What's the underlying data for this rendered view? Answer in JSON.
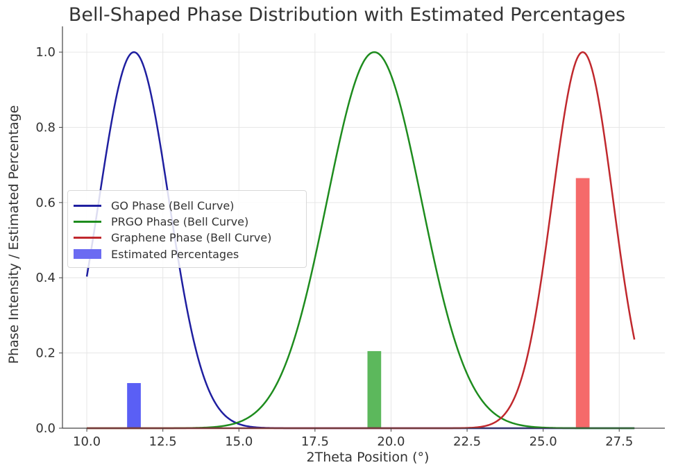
{
  "chart_data": {
    "type": "line",
    "title": "Bell-Shaped Phase Distribution with Estimated Percentages",
    "xlabel": "2Theta Position (°)",
    "ylabel": "Phase Intensity / Estimated Percentage",
    "xlim": [
      9.2,
      29.0
    ],
    "ylim": [
      0.0,
      1.05
    ],
    "xticks": [
      10.0,
      12.5,
      15.0,
      17.5,
      20.0,
      22.5,
      25.0,
      27.5
    ],
    "xtick_labels": [
      "10.0",
      "12.5",
      "15.0",
      "17.5",
      "20.0",
      "22.5",
      "25.0",
      "27.5"
    ],
    "yticks": [
      0.0,
      0.2,
      0.4,
      0.6,
      0.8,
      1.0
    ],
    "ytick_labels": [
      "0.0",
      "0.2",
      "0.4",
      "0.6",
      "0.8",
      "1.0"
    ],
    "grid": true,
    "legend_position": "center-left",
    "series": [
      {
        "name": "GO Phase (Bell Curve)",
        "kind": "gaussian",
        "center": 11.55,
        "sigma": 1.15,
        "amplitude": 1.0,
        "x_range": [
          10.0,
          28.0
        ],
        "color": "#1f1fa0"
      },
      {
        "name": "PRGO Phase (Bell Curve)",
        "kind": "gaussian",
        "center": 19.45,
        "sigma": 1.55,
        "amplitude": 1.0,
        "x_range": [
          10.0,
          28.0
        ],
        "color": "#1e8c1e"
      },
      {
        "name": "Graphene Phase (Bell Curve)",
        "kind": "gaussian",
        "center": 26.3,
        "sigma": 1.0,
        "amplitude": 1.0,
        "x_range": [
          10.0,
          28.0
        ],
        "color": "#c0282d"
      }
    ],
    "bars": {
      "name": "Estimated Percentages",
      "x": [
        11.55,
        19.45,
        26.3
      ],
      "values": [
        0.12,
        0.205,
        0.665
      ],
      "colors": [
        "#5a5ff5",
        "#5cb85c",
        "#f56a6a"
      ],
      "legend_color": "#6b6bf2",
      "width": 0.45
    }
  }
}
